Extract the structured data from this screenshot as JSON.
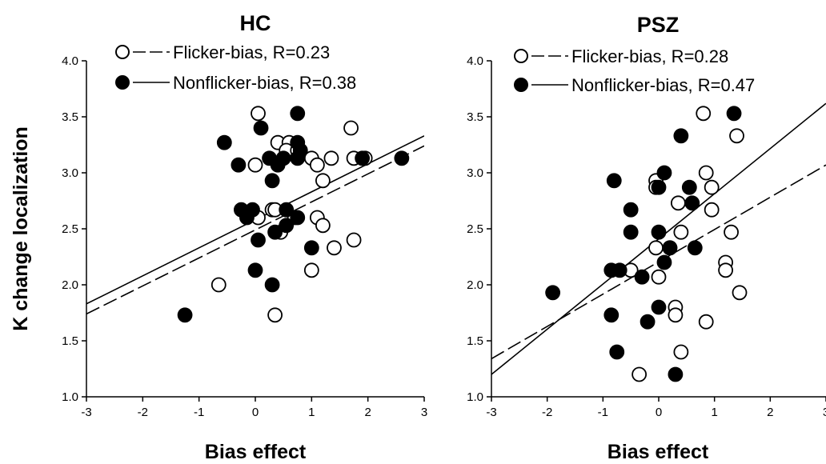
{
  "chart_data": [
    {
      "type": "scatter",
      "title": "HC",
      "xlabel": "Bias effect",
      "ylabel": "K change localization",
      "xlim": [
        -3,
        3
      ],
      "ylim": [
        1.0,
        4.0
      ],
      "x_ticks": [
        "-3",
        "-2",
        "-1",
        "0",
        "1",
        "2",
        "3"
      ],
      "y_ticks": [
        "1.0",
        "1.5",
        "2.0",
        "2.5",
        "3.0",
        "3.5",
        "4.0"
      ],
      "grid": false,
      "legend_position": "top",
      "series": [
        {
          "name": "Flicker-bias, R=0.23",
          "marker": "open-circle",
          "line": "dashed",
          "fit": [
            [
              -3,
              1.74
            ],
            [
              3,
              3.24
            ]
          ],
          "points": [
            [
              0.05,
              3.53
            ],
            [
              1.7,
              3.4
            ],
            [
              0.4,
              3.27
            ],
            [
              0.6,
              3.27
            ],
            [
              0.55,
              3.2
            ],
            [
              0.75,
              3.2
            ],
            [
              1.0,
              3.13
            ],
            [
              1.35,
              3.13
            ],
            [
              1.75,
              3.13
            ],
            [
              1.95,
              3.13
            ],
            [
              0.0,
              3.07
            ],
            [
              1.1,
              3.07
            ],
            [
              1.2,
              2.93
            ],
            [
              0.3,
              2.67
            ],
            [
              0.35,
              2.67
            ],
            [
              0.05,
              2.6
            ],
            [
              0.7,
              2.6
            ],
            [
              1.1,
              2.6
            ],
            [
              1.2,
              2.53
            ],
            [
              0.45,
              2.47
            ],
            [
              1.4,
              2.33
            ],
            [
              1.75,
              2.4
            ],
            [
              1.0,
              2.13
            ],
            [
              -0.65,
              2.0
            ],
            [
              0.35,
              1.73
            ]
          ]
        },
        {
          "name": "Nonflicker-bias, R=0.38",
          "marker": "filled-circle",
          "line": "solid",
          "fit": [
            [
              -3,
              1.83
            ],
            [
              3,
              3.33
            ]
          ],
          "points": [
            [
              0.75,
              3.53
            ],
            [
              0.1,
              3.4
            ],
            [
              -0.55,
              3.27
            ],
            [
              0.75,
              3.27
            ],
            [
              0.8,
              3.2
            ],
            [
              0.25,
              3.13
            ],
            [
              0.5,
              3.13
            ],
            [
              0.75,
              3.13
            ],
            [
              1.9,
              3.13
            ],
            [
              2.6,
              3.13
            ],
            [
              -0.3,
              3.07
            ],
            [
              0.4,
              3.07
            ],
            [
              0.3,
              2.93
            ],
            [
              -0.25,
              2.67
            ],
            [
              -0.05,
              2.67
            ],
            [
              0.55,
              2.67
            ],
            [
              -0.15,
              2.6
            ],
            [
              0.75,
              2.6
            ],
            [
              0.55,
              2.53
            ],
            [
              0.35,
              2.47
            ],
            [
              0.05,
              2.4
            ],
            [
              1.0,
              2.33
            ],
            [
              0.0,
              2.13
            ],
            [
              0.3,
              2.0
            ],
            [
              -1.25,
              1.73
            ]
          ]
        }
      ]
    },
    {
      "type": "scatter",
      "title": "PSZ",
      "xlabel": "Bias effect",
      "ylabel": "",
      "xlim": [
        -3,
        3
      ],
      "ylim": [
        1.0,
        4.0
      ],
      "x_ticks": [
        "-3",
        "-2",
        "-1",
        "0",
        "1",
        "2",
        "3"
      ],
      "y_ticks": [
        "1.0",
        "1.5",
        "2.0",
        "2.5",
        "3.0",
        "3.5",
        "4.0"
      ],
      "grid": false,
      "legend_position": "top",
      "series": [
        {
          "name": "Flicker-bias, R=0.28",
          "marker": "open-circle",
          "line": "dashed",
          "fit": [
            [
              -3,
              1.34
            ],
            [
              3,
              3.07
            ]
          ],
          "points": [
            [
              0.8,
              3.53
            ],
            [
              1.4,
              3.33
            ],
            [
              0.85,
              3.0
            ],
            [
              -0.05,
              2.93
            ],
            [
              -0.05,
              2.87
            ],
            [
              0.95,
              2.87
            ],
            [
              0.35,
              2.73
            ],
            [
              0.95,
              2.67
            ],
            [
              0.4,
              2.47
            ],
            [
              1.3,
              2.47
            ],
            [
              1.2,
              2.2
            ],
            [
              1.2,
              2.13
            ],
            [
              0.2,
              2.33
            ],
            [
              -0.05,
              2.33
            ],
            [
              -0.5,
              2.13
            ],
            [
              0.0,
              2.07
            ],
            [
              1.45,
              1.93
            ],
            [
              0.3,
              1.8
            ],
            [
              0.3,
              1.73
            ],
            [
              0.85,
              1.67
            ],
            [
              0.4,
              1.4
            ],
            [
              -0.35,
              1.2
            ]
          ]
        },
        {
          "name": "Nonflicker-bias, R=0.47",
          "marker": "filled-circle",
          "line": "solid",
          "fit": [
            [
              -3,
              1.2
            ],
            [
              3,
              3.62
            ]
          ],
          "points": [
            [
              1.35,
              3.53
            ],
            [
              0.4,
              3.33
            ],
            [
              0.1,
              3.0
            ],
            [
              -0.8,
              2.93
            ],
            [
              0.0,
              2.87
            ],
            [
              0.55,
              2.87
            ],
            [
              0.6,
              2.73
            ],
            [
              -0.5,
              2.67
            ],
            [
              -0.5,
              2.47
            ],
            [
              0.0,
              2.47
            ],
            [
              0.2,
              2.33
            ],
            [
              0.65,
              2.33
            ],
            [
              0.1,
              2.2
            ],
            [
              -0.85,
              2.13
            ],
            [
              -0.7,
              2.13
            ],
            [
              -0.3,
              2.07
            ],
            [
              -1.9,
              1.93
            ],
            [
              0.0,
              1.8
            ],
            [
              -0.85,
              1.73
            ],
            [
              -0.2,
              1.67
            ],
            [
              -0.75,
              1.4
            ],
            [
              0.3,
              1.2
            ]
          ]
        }
      ]
    }
  ]
}
